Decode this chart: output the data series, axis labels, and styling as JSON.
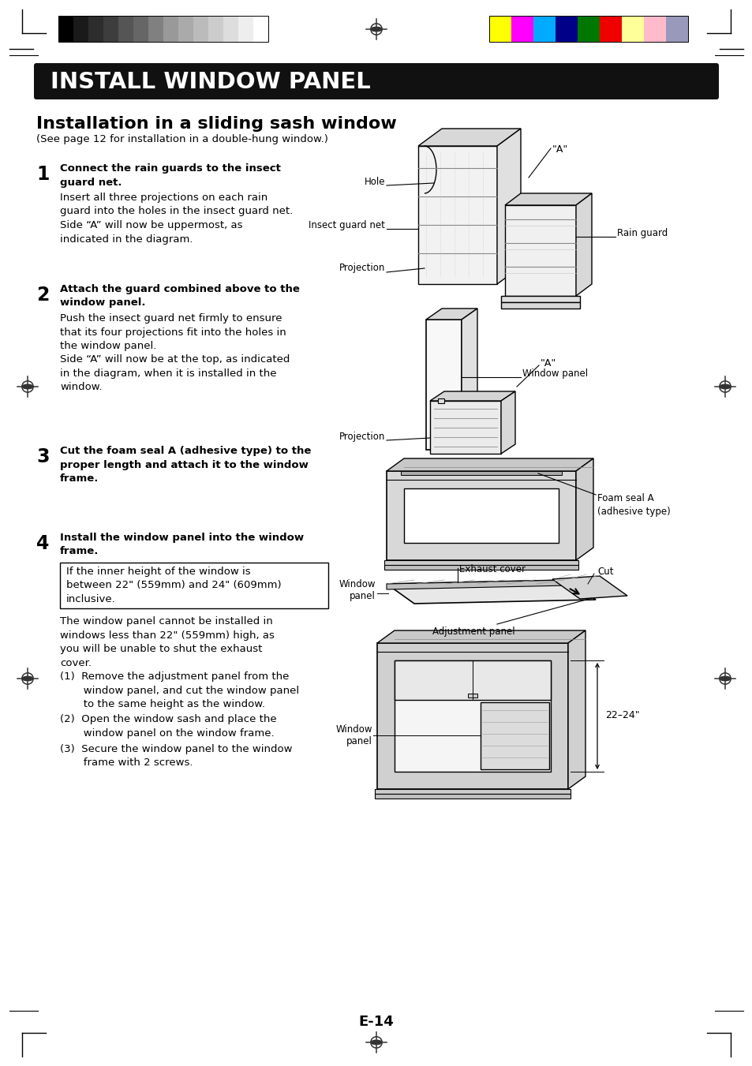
{
  "page_bg": "#ffffff",
  "header_bar_color": "#111111",
  "header_text": "INSTALL WINDOW PANEL",
  "header_text_color": "#ffffff",
  "section_title": "Installation in a sliding sash window",
  "section_subtitle": "(See page 12 for installation in a double-hung window.)",
  "step1_num": "1",
  "step1_bold": "Connect the rain guards to the insect\nguard net.",
  "step1_text": "Insert all three projections on each rain\nguard into the holes in the insect guard net.\nSide “A” will now be uppermost, as\nindicated in the diagram.",
  "step2_num": "2",
  "step2_bold": "Attach the guard combined above to the\nwindow panel.",
  "step2_text": "Push the insect guard net firmly to ensure\nthat its four projections fit into the holes in\nthe window panel.\nSide “A” will now be at the top, as indicated\nin the diagram, when it is installed in the\nwindow.",
  "step3_num": "3",
  "step3_bold": "Cut the foam seal A (adhesive type) to the\nproper length and attach it to the window\nframe.",
  "step4_num": "4",
  "step4_bold": "Install the window panel into the window\nframe.",
  "step4_box": "If the inner height of the window is\nbetween 22\" (559mm) and 24\" (609mm)\ninclusive.",
  "step4_text1": "The window panel cannot be installed in\nwindows less than 22\" (559mm) high, as\nyou will be unable to shut the exhaust\ncover.",
  "step4_text2": "(1)  Remove the adjustment panel from the\n       window panel, and cut the window panel\n       to the same height as the window.",
  "step4_text3": "(2)  Open the window sash and place the\n       window panel on the window frame.",
  "step4_text4": "(3)  Secure the window panel to the window\n       frame with 2 screws.",
  "page_num": "E-14",
  "gray_colors": [
    "#000000",
    "#1a1a1a",
    "#2d2d2d",
    "#3d3d3d",
    "#555555",
    "#666666",
    "#808080",
    "#999999",
    "#aaaaaa",
    "#bbbbbb",
    "#cccccc",
    "#dddddd",
    "#eeeeee",
    "#ffffff"
  ],
  "color_bars": [
    "#ffff00",
    "#ff00ff",
    "#00aaff",
    "#000088",
    "#007700",
    "#ee0000",
    "#ffff99",
    "#ffbbcc",
    "#9999bb"
  ]
}
